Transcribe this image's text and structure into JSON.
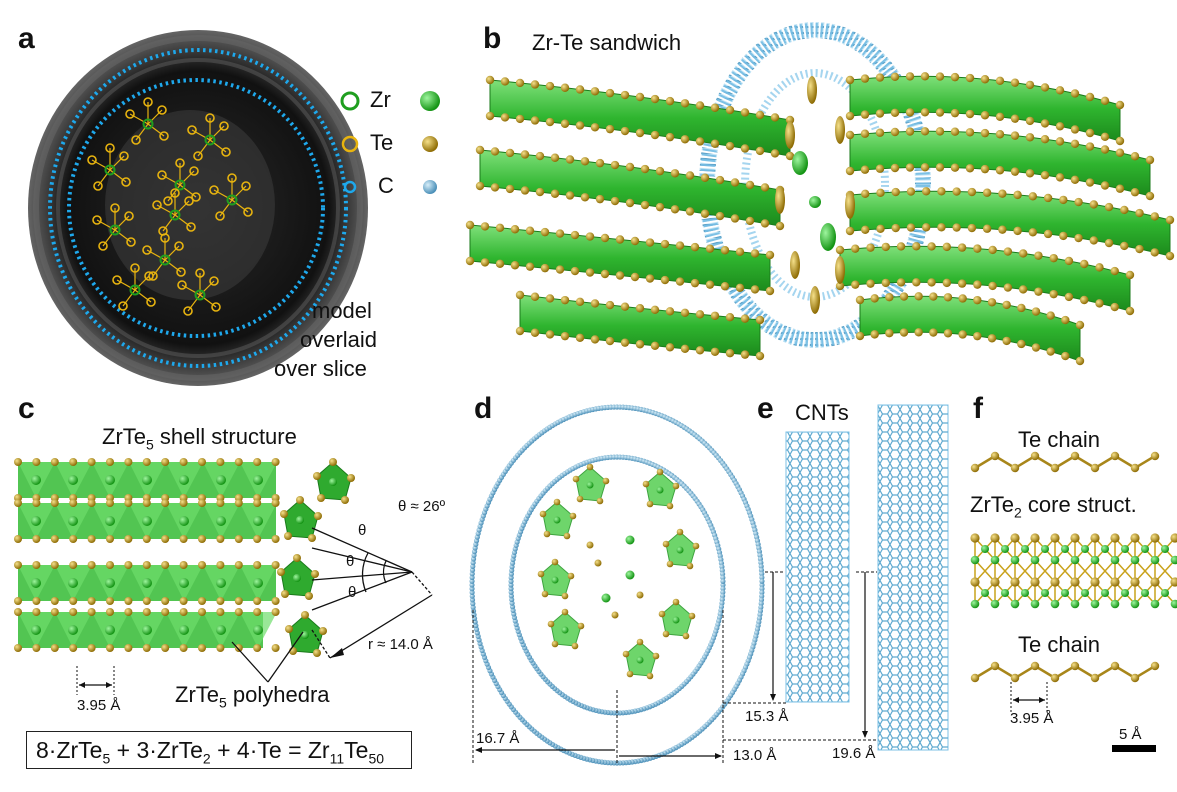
{
  "panels": {
    "a": "a",
    "b": "b",
    "c": "c",
    "d": "d",
    "e": "e",
    "f": "f"
  },
  "legend": {
    "zr": "Zr",
    "te": "Te",
    "c": "C"
  },
  "colors": {
    "zr": "#1f9e1f",
    "te": "#c9a21a",
    "c": "#56b4e9",
    "polyhedra": "#37c43a"
  },
  "a": {
    "caption_1": "model",
    "caption_2": "overlaid",
    "caption_3": "over slice"
  },
  "b": {
    "title": "Zr-Te sandwich"
  },
  "c": {
    "title_prefix": "ZrTe",
    "title_sub": "5",
    "title_suffix": " shell structure",
    "angle": "θ ≈ 26º",
    "theta": "θ",
    "radius": "r ≈ 14.0 Å",
    "spacing": "3.95 Å",
    "poly_prefix": "ZrTe",
    "poly_sub": "5",
    "poly_suffix": " polyhedra"
  },
  "equation": {
    "t1": "8·ZrTe",
    "s1": "5",
    "t2": " + 3·ZrTe",
    "s2": "2",
    "t3": " + 4·Te = Zr",
    "s3": "11",
    "t4": "Te",
    "s4": "50"
  },
  "d": {
    "dim_outer": "16.7 Å",
    "dim_inner": "13.0 Å"
  },
  "e": {
    "title": "CNTs",
    "dim_small": "15.3 Å",
    "dim_large": "19.6 Å"
  },
  "f": {
    "te_chain_top": "Te chain",
    "core_prefix": "ZrTe",
    "core_sub": "2",
    "core_suffix": " core struct.",
    "te_chain_bottom": "Te chain",
    "spacing": "3.95 Å",
    "scale": "5 Å"
  }
}
